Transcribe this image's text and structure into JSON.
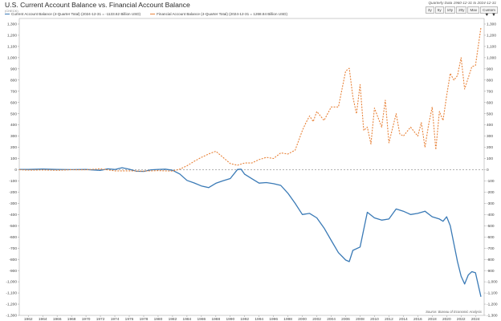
{
  "chart_data": {
    "type": "line",
    "title": "U.S. Current Account Balance vs. Financial Account Balance",
    "subtitle": "(CHECK)",
    "date_range": "Quarterly Data 1960-12-31 to 2024-12-31",
    "range_buttons": [
      "3y",
      "5y",
      "10y",
      "20y",
      "Max",
      "Custom"
    ],
    "source": "Source: Bureau of Economic Analysis",
    "ylim": [
      -1300,
      1350
    ],
    "xlim": [
      1960.75,
      2025.2
    ],
    "yticks": [
      1300,
      1200,
      1100,
      1000,
      900,
      800,
      700,
      600,
      500,
      400,
      300,
      200,
      100,
      0,
      -100,
      -200,
      -300,
      -400,
      -500,
      -600,
      -700,
      -800,
      -900,
      -1000,
      -1100,
      -1200,
      -1300
    ],
    "ytick_labels": [
      "1,300",
      "1,200",
      "1,100",
      "1,000",
      "900",
      "800",
      "700",
      "600",
      "500",
      "400",
      "300",
      "200",
      "100",
      "0",
      "-100",
      "-200",
      "-300",
      "-400",
      "-500",
      "-600",
      "-700",
      "-800",
      "-900",
      "-1,000",
      "-1,100",
      "-1,200",
      "-1,300"
    ],
    "xtick_labels": [
      "1962",
      "1964",
      "1966",
      "1968",
      "1970",
      "1972",
      "1974",
      "1976",
      "1978",
      "1980",
      "1982",
      "1984",
      "1986",
      "1988",
      "1990",
      "1992",
      "1994",
      "1996",
      "1998",
      "2000",
      "2002",
      "2004",
      "2006",
      "2008",
      "2010",
      "2012",
      "2014",
      "2016",
      "2018",
      "2020",
      "2022",
      "2024"
    ],
    "series": [
      {
        "name": "Current Account Balance (4-Quarter Total) (2024-12-31 = -1133.62 Billion USD)",
        "color": "#3a7ab6",
        "style": "solid",
        "x": [
          1960.75,
          1962,
          1964,
          1966,
          1968,
          1970,
          1972,
          1973,
          1974,
          1975,
          1976,
          1977,
          1978,
          1979,
          1980,
          1981,
          1982,
          1983,
          1984,
          1985,
          1986,
          1987,
          1988,
          1989,
          1990,
          1991,
          1991.5,
          1992,
          1993,
          1994,
          1995,
          1996,
          1997,
          1998,
          1999,
          2000,
          2001,
          2002,
          2003,
          2004,
          2005,
          2006,
          2006.5,
          2007,
          2008,
          2009,
          2010,
          2011,
          2012,
          2013,
          2014,
          2015,
          2016,
          2017,
          2018,
          2019,
          2019.5,
          2020,
          2020.5,
          2021,
          2021.5,
          2022,
          2022.5,
          2023,
          2023.5,
          2024,
          2024.75
        ],
        "y": [
          3,
          3,
          6,
          3,
          1,
          2,
          -6,
          8,
          2,
          18,
          4,
          -14,
          -15,
          -1,
          3,
          5,
          -5,
          -38,
          -95,
          -118,
          -145,
          -160,
          -121,
          -99,
          -79,
          2,
          5,
          -40,
          -80,
          -120,
          -115,
          -125,
          -140,
          -210,
          -300,
          -400,
          -390,
          -430,
          -520,
          -630,
          -740,
          -806,
          -820,
          -720,
          -690,
          -380,
          -430,
          -450,
          -440,
          -350,
          -370,
          -400,
          -390,
          -370,
          -420,
          -440,
          -460,
          -420,
          -500,
          -660,
          -820,
          -950,
          -1020,
          -940,
          -910,
          -920,
          -1134
        ]
      },
      {
        "name": "Financial Account Balance (4-Quarter Total) (2024-12-31 = 1268.84 Billion USD)",
        "color": "#e8833a",
        "style": "dashed",
        "x": [
          1960.75,
          1962,
          1964,
          1966,
          1968,
          1970,
          1972,
          1974,
          1976,
          1978,
          1980,
          1982,
          1983,
          1984,
          1985,
          1986,
          1987,
          1988,
          1989,
          1990,
          1991,
          1992,
          1993,
          1994,
          1995,
          1996,
          1997,
          1998,
          1999,
          2000,
          2000.5,
          2001,
          2001.5,
          2002,
          2003,
          2004,
          2005,
          2006,
          2006.5,
          2007,
          2007.5,
          2008,
          2008.5,
          2009,
          2009.5,
          2010,
          2011,
          2011.5,
          2012,
          2013,
          2013.5,
          2014,
          2015,
          2016,
          2016.5,
          2017,
          2017.5,
          2018,
          2018.5,
          2019,
          2019.5,
          2020,
          2020.5,
          2021,
          2021.5,
          2022,
          2022.5,
          2023,
          2023.5,
          2024,
          2024.75
        ],
        "y": [
          0,
          -4,
          -2,
          -5,
          0,
          -1,
          8,
          -10,
          -10,
          -12,
          -8,
          -12,
          5,
          35,
          75,
          110,
          140,
          165,
          110,
          55,
          40,
          60,
          60,
          90,
          110,
          100,
          150,
          140,
          175,
          350,
          420,
          480,
          430,
          520,
          440,
          560,
          560,
          880,
          905,
          650,
          500,
          760,
          350,
          380,
          230,
          550,
          380,
          620,
          240,
          500,
          320,
          300,
          380,
          300,
          420,
          200,
          400,
          560,
          180,
          520,
          440,
          660,
          860,
          800,
          840,
          1000,
          720,
          820,
          920,
          930,
          1269
        ]
      }
    ]
  }
}
